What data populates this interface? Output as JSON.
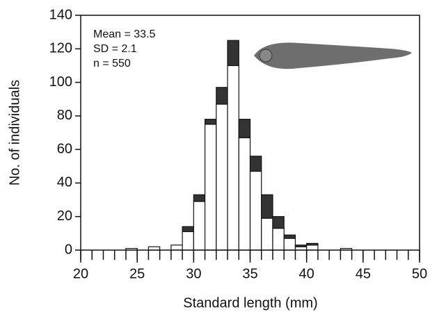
{
  "chart_data": {
    "type": "histogram",
    "xlabel": "Standard length (mm)",
    "ylabel": "No. of individuals",
    "annotations": [
      "Mean = 33.5",
      "SD = 2.1",
      "n = 550"
    ],
    "bins": [
      20,
      21,
      22,
      23,
      24,
      25,
      26,
      27,
      28,
      29,
      30,
      31,
      32,
      33,
      34,
      35,
      36,
      37,
      38,
      39,
      40,
      41,
      42,
      43,
      44,
      45,
      46,
      47,
      48,
      49,
      50
    ],
    "series": [
      {
        "color": "#ffffff",
        "values": [
          0,
          0,
          0,
          0,
          1,
          0,
          2,
          0,
          3,
          11,
          29,
          75,
          87,
          110,
          67,
          47,
          19,
          13,
          7,
          2,
          3,
          0,
          0,
          1,
          0,
          0,
          0,
          0,
          0,
          0
        ]
      },
      {
        "color": "#333333",
        "values": [
          0,
          0,
          0,
          0,
          0,
          0,
          0,
          0,
          0,
          3,
          4,
          3,
          10,
          15,
          11,
          9,
          14,
          7,
          2,
          1,
          1,
          0,
          0,
          0,
          0,
          0,
          0,
          0,
          0,
          0
        ]
      }
    ],
    "xlim": [
      20,
      50
    ],
    "xticks": [
      20,
      25,
      30,
      35,
      40,
      45,
      50
    ],
    "ylim": [
      0,
      140
    ],
    "yticks": [
      0,
      20,
      40,
      60,
      80,
      100,
      120,
      140
    ]
  }
}
